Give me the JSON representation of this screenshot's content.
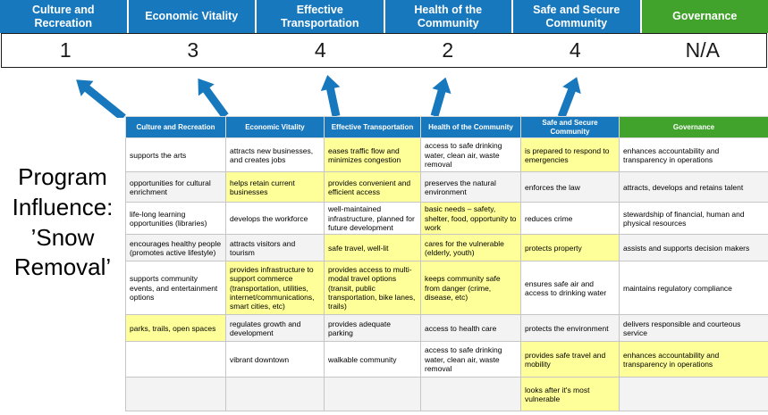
{
  "title": "Program Influence: ’Snow Removal’",
  "colors": {
    "blue": "#1878BE",
    "green": "#41A32B",
    "highlight": "#FFFF99",
    "score_text": "#1a1a1a"
  },
  "scoreboard": {
    "columns": [
      {
        "label": "Culture and Recreation",
        "score": "1",
        "color": "blue"
      },
      {
        "label": "Economic Vitality",
        "score": "3",
        "color": "blue"
      },
      {
        "label": "Effective Transportation",
        "score": "4",
        "color": "blue"
      },
      {
        "label": "Health of the Community",
        "score": "2",
        "color": "blue"
      },
      {
        "label": "Safe and Secure Community",
        "score": "4",
        "color": "blue"
      },
      {
        "label": "Governance",
        "score": "N/A",
        "color": "green"
      }
    ]
  },
  "arrow_icon": "up-arrow",
  "matrix": {
    "headers": [
      {
        "label": "Culture and Recreation",
        "color": "blue"
      },
      {
        "label": "Economic Vitality",
        "color": "blue"
      },
      {
        "label": "Effective Transportation",
        "color": "blue"
      },
      {
        "label": "Health of the Community",
        "color": "blue"
      },
      {
        "label": "Safe and Secure Community",
        "color": "blue"
      },
      {
        "label": "Governance",
        "color": "green"
      }
    ],
    "rows": [
      [
        {
          "text": "supports the arts",
          "highlight": false
        },
        {
          "text": "attracts new businesses, and creates jobs",
          "highlight": false
        },
        {
          "text": "eases traffic flow and minimizes congestion",
          "highlight": true
        },
        {
          "text": "access to safe drinking water, clean air, waste removal",
          "highlight": false
        },
        {
          "text": "is prepared to respond to emergencies",
          "highlight": true
        },
        {
          "text": "enhances accountability and transparency in operations",
          "highlight": false
        }
      ],
      [
        {
          "text": "opportunities for cultural enrichment",
          "highlight": false
        },
        {
          "text": "helps retain current businesses",
          "highlight": true
        },
        {
          "text": "provides convenient and efficient access",
          "highlight": true
        },
        {
          "text": "preserves the natural environment",
          "highlight": false
        },
        {
          "text": "enforces the law",
          "highlight": false
        },
        {
          "text": "attracts, develops and retains talent",
          "highlight": false
        }
      ],
      [
        {
          "text": "life-long learning opportunities (libraries)",
          "highlight": false
        },
        {
          "text": "develops the workforce",
          "highlight": false
        },
        {
          "text": "well-maintained infrastructure, planned for future development",
          "highlight": false
        },
        {
          "text": "basic needs – safety, shelter, food, opportunity to work",
          "highlight": true
        },
        {
          "text": "reduces crime",
          "highlight": false
        },
        {
          "text": "stewardship of financial, human and physical resources",
          "highlight": false
        }
      ],
      [
        {
          "text": "encourages healthy people (promotes active lifestyle)",
          "highlight": false
        },
        {
          "text": "attracts visitors and tourism",
          "highlight": false
        },
        {
          "text": "safe travel, well-lit",
          "highlight": true
        },
        {
          "text": "cares for the vulnerable (elderly, youth)",
          "highlight": true
        },
        {
          "text": "protects property",
          "highlight": true
        },
        {
          "text": "assists and supports decision makers",
          "highlight": false
        }
      ],
      [
        {
          "text": "supports community events, and entertainment options",
          "highlight": false
        },
        {
          "text": "provides infrastructure to support commerce (transportation, utilities, internet/communications, smart cities, etc)",
          "highlight": true
        },
        {
          "text": "provides access to multi-modal travel options (transit, public transportation, bike lanes, trails)",
          "highlight": true
        },
        {
          "text": "keeps community safe from danger (crime, disease, etc)",
          "highlight": true
        },
        {
          "text": "ensures safe air and access to drinking water",
          "highlight": false
        },
        {
          "text": "maintains regulatory compliance",
          "highlight": false
        }
      ],
      [
        {
          "text": "parks, trails, open spaces",
          "highlight": true
        },
        {
          "text": "regulates growth and development",
          "highlight": false
        },
        {
          "text": "provides adequate parking",
          "highlight": false
        },
        {
          "text": "access to health care",
          "highlight": false
        },
        {
          "text": "protects the environment",
          "highlight": false
        },
        {
          "text": "delivers responsible and courteous service",
          "highlight": false
        }
      ],
      [
        {
          "text": "",
          "highlight": false
        },
        {
          "text": "vibrant downtown",
          "highlight": false
        },
        {
          "text": "walkable community",
          "highlight": false
        },
        {
          "text": "access to safe drinking water, clean air, waste removal",
          "highlight": false
        },
        {
          "text": "provides safe travel and mobility",
          "highlight": true
        },
        {
          "text": "enhances accountability and transparency in operations",
          "highlight": true
        }
      ],
      [
        {
          "text": "",
          "highlight": false
        },
        {
          "text": "",
          "highlight": false
        },
        {
          "text": "",
          "highlight": false
        },
        {
          "text": "",
          "highlight": false
        },
        {
          "text": "looks after it's most vulnerable",
          "highlight": true
        },
        {
          "text": "",
          "highlight": false
        }
      ]
    ]
  }
}
